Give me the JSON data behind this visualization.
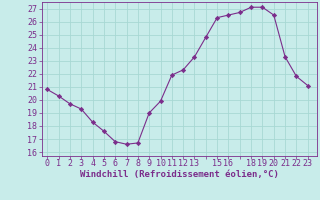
{
  "x": [
    0,
    1,
    2,
    3,
    4,
    5,
    6,
    7,
    8,
    9,
    10,
    11,
    12,
    13,
    14,
    15,
    16,
    17,
    18,
    19,
    20,
    21,
    22,
    23
  ],
  "y": [
    20.8,
    20.3,
    19.7,
    19.3,
    18.3,
    17.6,
    16.8,
    16.6,
    16.7,
    19.0,
    19.9,
    21.9,
    22.3,
    23.3,
    24.8,
    26.3,
    26.5,
    26.7,
    27.1,
    27.1,
    26.5,
    23.3,
    21.8,
    21.1
  ],
  "line_color": "#7b2d8b",
  "marker": "D",
  "marker_size": 2.2,
  "bg_color": "#c8ecea",
  "grid_color": "#a8d8d4",
  "ylabel_ticks": [
    16,
    17,
    18,
    19,
    20,
    21,
    22,
    23,
    24,
    25,
    26,
    27
  ],
  "xlabel": "Windchill (Refroidissement éolien,°C)",
  "ylim": [
    15.7,
    27.5
  ],
  "xlim": [
    -0.5,
    23.8
  ],
  "tick_font_size": 6.0,
  "xlabel_font_size": 6.5
}
